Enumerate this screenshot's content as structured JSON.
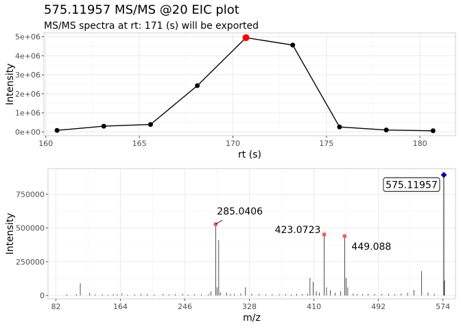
{
  "title": "575.11957 MS/MS @20 EIC plot",
  "subtitle": "MS/MS spectra at rt: 171 (s) will be exported",
  "chart_data": [
    {
      "type": "line",
      "xlabel": "rt (s)",
      "ylabel": "Intensity",
      "xlim": [
        159.9,
        181.9
      ],
      "ylim": [
        -200000,
        5200000
      ],
      "xticks": [
        160,
        165,
        170,
        175,
        180
      ],
      "xtick_labels": [
        "160",
        "165",
        "170",
        "175",
        "180"
      ],
      "yticks": [
        0,
        1000000,
        2000000,
        3000000,
        4000000,
        5000000
      ],
      "ytick_labels": [
        "0e+00",
        "1e+06",
        "2e+06",
        "3e+06",
        "4e+06",
        "5e+06"
      ],
      "grid": true,
      "points": [
        {
          "x": 160.6,
          "y": 80000
        },
        {
          "x": 163.1,
          "y": 300000
        },
        {
          "x": 165.6,
          "y": 390000
        },
        {
          "x": 168.1,
          "y": 2430000
        },
        {
          "x": 170.7,
          "y": 4950000,
          "highlight": true
        },
        {
          "x": 173.2,
          "y": 4560000
        },
        {
          "x": 175.7,
          "y": 260000
        },
        {
          "x": 178.2,
          "y": 100000
        },
        {
          "x": 180.7,
          "y": 60000
        }
      ],
      "line_color": "#000000",
      "point_color": "#000000",
      "highlight_color": "#ff0000"
    },
    {
      "type": "bar",
      "subtype": "spectrum",
      "xlabel": "m/z",
      "ylabel": "Intensity",
      "xlim": [
        72,
        590
      ],
      "ylim": [
        -25000,
        940000
      ],
      "xticks": [
        82,
        164,
        246,
        328,
        410,
        492,
        574
      ],
      "xtick_labels": [
        "82",
        "164",
        "246",
        "328",
        "410",
        "492",
        "574"
      ],
      "yticks": [
        0,
        250000,
        500000,
        750000
      ],
      "ytick_labels": [
        "0",
        "250000",
        "500000",
        "750000"
      ],
      "grid": true,
      "peaks": [
        {
          "mz": 96,
          "i": 8000
        },
        {
          "mz": 108,
          "i": 10000
        },
        {
          "mz": 113,
          "i": 90000
        },
        {
          "mz": 125,
          "i": 20000
        },
        {
          "mz": 132,
          "i": 8000
        },
        {
          "mz": 141,
          "i": 8000
        },
        {
          "mz": 148,
          "i": 6000
        },
        {
          "mz": 155,
          "i": 10000
        },
        {
          "mz": 160,
          "i": 8000
        },
        {
          "mz": 166,
          "i": 14000
        },
        {
          "mz": 173,
          "i": 6000
        },
        {
          "mz": 182,
          "i": 8000
        },
        {
          "mz": 190,
          "i": 12000
        },
        {
          "mz": 198,
          "i": 10000
        },
        {
          "mz": 207,
          "i": 8000
        },
        {
          "mz": 218,
          "i": 10000
        },
        {
          "mz": 226,
          "i": 8000
        },
        {
          "mz": 234,
          "i": 10000
        },
        {
          "mz": 243,
          "i": 12000
        },
        {
          "mz": 250,
          "i": 8000
        },
        {
          "mz": 258,
          "i": 10000
        },
        {
          "mz": 267,
          "i": 8000
        },
        {
          "mz": 276,
          "i": 10000
        },
        {
          "mz": 279,
          "i": 30000
        },
        {
          "mz": 285.04,
          "i": 528000
        },
        {
          "mz": 287,
          "i": 60000
        },
        {
          "mz": 289,
          "i": 410000
        },
        {
          "mz": 291,
          "i": 25000
        },
        {
          "mz": 299,
          "i": 20000
        },
        {
          "mz": 304,
          "i": 10000
        },
        {
          "mz": 309,
          "i": 12000
        },
        {
          "mz": 317,
          "i": 14000
        },
        {
          "mz": 323,
          "i": 60000
        },
        {
          "mz": 331,
          "i": 12000
        },
        {
          "mz": 340,
          "i": 10000
        },
        {
          "mz": 349,
          "i": 8000
        },
        {
          "mz": 357,
          "i": 10000
        },
        {
          "mz": 366,
          "i": 8000
        },
        {
          "mz": 374,
          "i": 10000
        },
        {
          "mz": 381,
          "i": 8000
        },
        {
          "mz": 388,
          "i": 12000
        },
        {
          "mz": 395,
          "i": 10000
        },
        {
          "mz": 402,
          "i": 12000
        },
        {
          "mz": 405,
          "i": 130000
        },
        {
          "mz": 409,
          "i": 100000
        },
        {
          "mz": 413,
          "i": 30000
        },
        {
          "mz": 417,
          "i": 20000
        },
        {
          "mz": 423.07,
          "i": 452000
        },
        {
          "mz": 426,
          "i": 60000
        },
        {
          "mz": 431,
          "i": 40000
        },
        {
          "mz": 437,
          "i": 20000
        },
        {
          "mz": 444,
          "i": 30000
        },
        {
          "mz": 449.09,
          "i": 440000
        },
        {
          "mz": 451,
          "i": 130000
        },
        {
          "mz": 453,
          "i": 60000
        },
        {
          "mz": 460,
          "i": 14000
        },
        {
          "mz": 465,
          "i": 10000
        },
        {
          "mz": 472,
          "i": 10000
        },
        {
          "mz": 479,
          "i": 12000
        },
        {
          "mz": 487,
          "i": 10000
        },
        {
          "mz": 496,
          "i": 10000
        },
        {
          "mz": 505,
          "i": 12000
        },
        {
          "mz": 513,
          "i": 10000
        },
        {
          "mz": 521,
          "i": 14000
        },
        {
          "mz": 529,
          "i": 20000
        },
        {
          "mz": 537,
          "i": 40000
        },
        {
          "mz": 547,
          "i": 180000
        },
        {
          "mz": 555,
          "i": 20000
        },
        {
          "mz": 563,
          "i": 12000
        },
        {
          "mz": 575.12,
          "i": 893000
        },
        {
          "mz": 576,
          "i": 110000
        }
      ],
      "labeled_peaks": [
        {
          "mz": 285.04,
          "i": 528000,
          "label": "285.0406"
        },
        {
          "mz": 423.07,
          "i": 452000,
          "label": "423.0723"
        },
        {
          "mz": 449.09,
          "i": 440000,
          "label": "449.088"
        }
      ],
      "precursor": {
        "mz": 575.12,
        "i": 893000,
        "label": "575.11957"
      },
      "peak_color": "#000000",
      "label_point_color": "#ff5a5a",
      "precursor_color": "#0000cd"
    }
  ]
}
